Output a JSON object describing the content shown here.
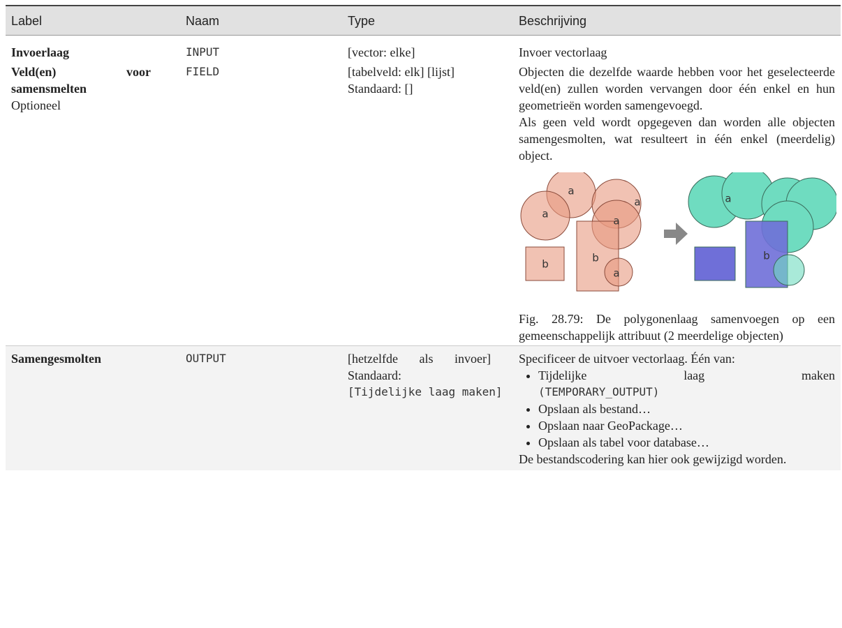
{
  "header": [
    "Label",
    "Naam",
    "Type",
    "Beschrijving"
  ],
  "rows": [
    {
      "label": "Invoerlaag",
      "name": "INPUT",
      "type": [
        "[vector: elke]"
      ],
      "description": [
        "Invoer vectorlaag"
      ]
    },
    {
      "label": "Veld(en) voor samensmelten",
      "note": "Optioneel",
      "name": "FIELD",
      "type": [
        "[tabelveld: elk] [lijst]",
        "Standaard: []"
      ],
      "description": [
        "Objecten die dezelfde waarde hebben voor het geselecteerde veld(en) zullen worden vervangen door één enkel en hun geometrieën worden samengevoegd.",
        "Als geen veld wordt opgegeven dan worden alle objecten samengesmolten, wat resulteert in één enkel (meerdelig) object."
      ],
      "figure": {
        "labels": [
          "a",
          "a",
          "a",
          "a",
          "b",
          "b",
          "a",
          "a",
          "b"
        ],
        "caption": "Fig. 28.79: De polygonenlaag samenvoegen op een gemeenschappelijk attribuut (2 meerdelige objecten)"
      }
    },
    {
      "label": "Samengesmolten",
      "name": "OUTPUT",
      "type": [
        "[hetzelfde als invoer]",
        "Standaard:"
      ],
      "type_code": "[Tijdelijke laag maken]",
      "description": [
        "Specificeer de uitvoer vectorlaag. Één van:"
      ],
      "options": [
        {
          "text": "Tijdelijke laag maken",
          "code": "(TEMPORARY_OUTPUT)"
        },
        {
          "text": "Opslaan als bestand…"
        },
        {
          "text": "Opslaan naar GeoPackage…"
        },
        {
          "text": "Opslaan als tabel voor database…"
        }
      ],
      "outro": "De bestandscodering kan hier ook gewijzigd worden."
    }
  ]
}
